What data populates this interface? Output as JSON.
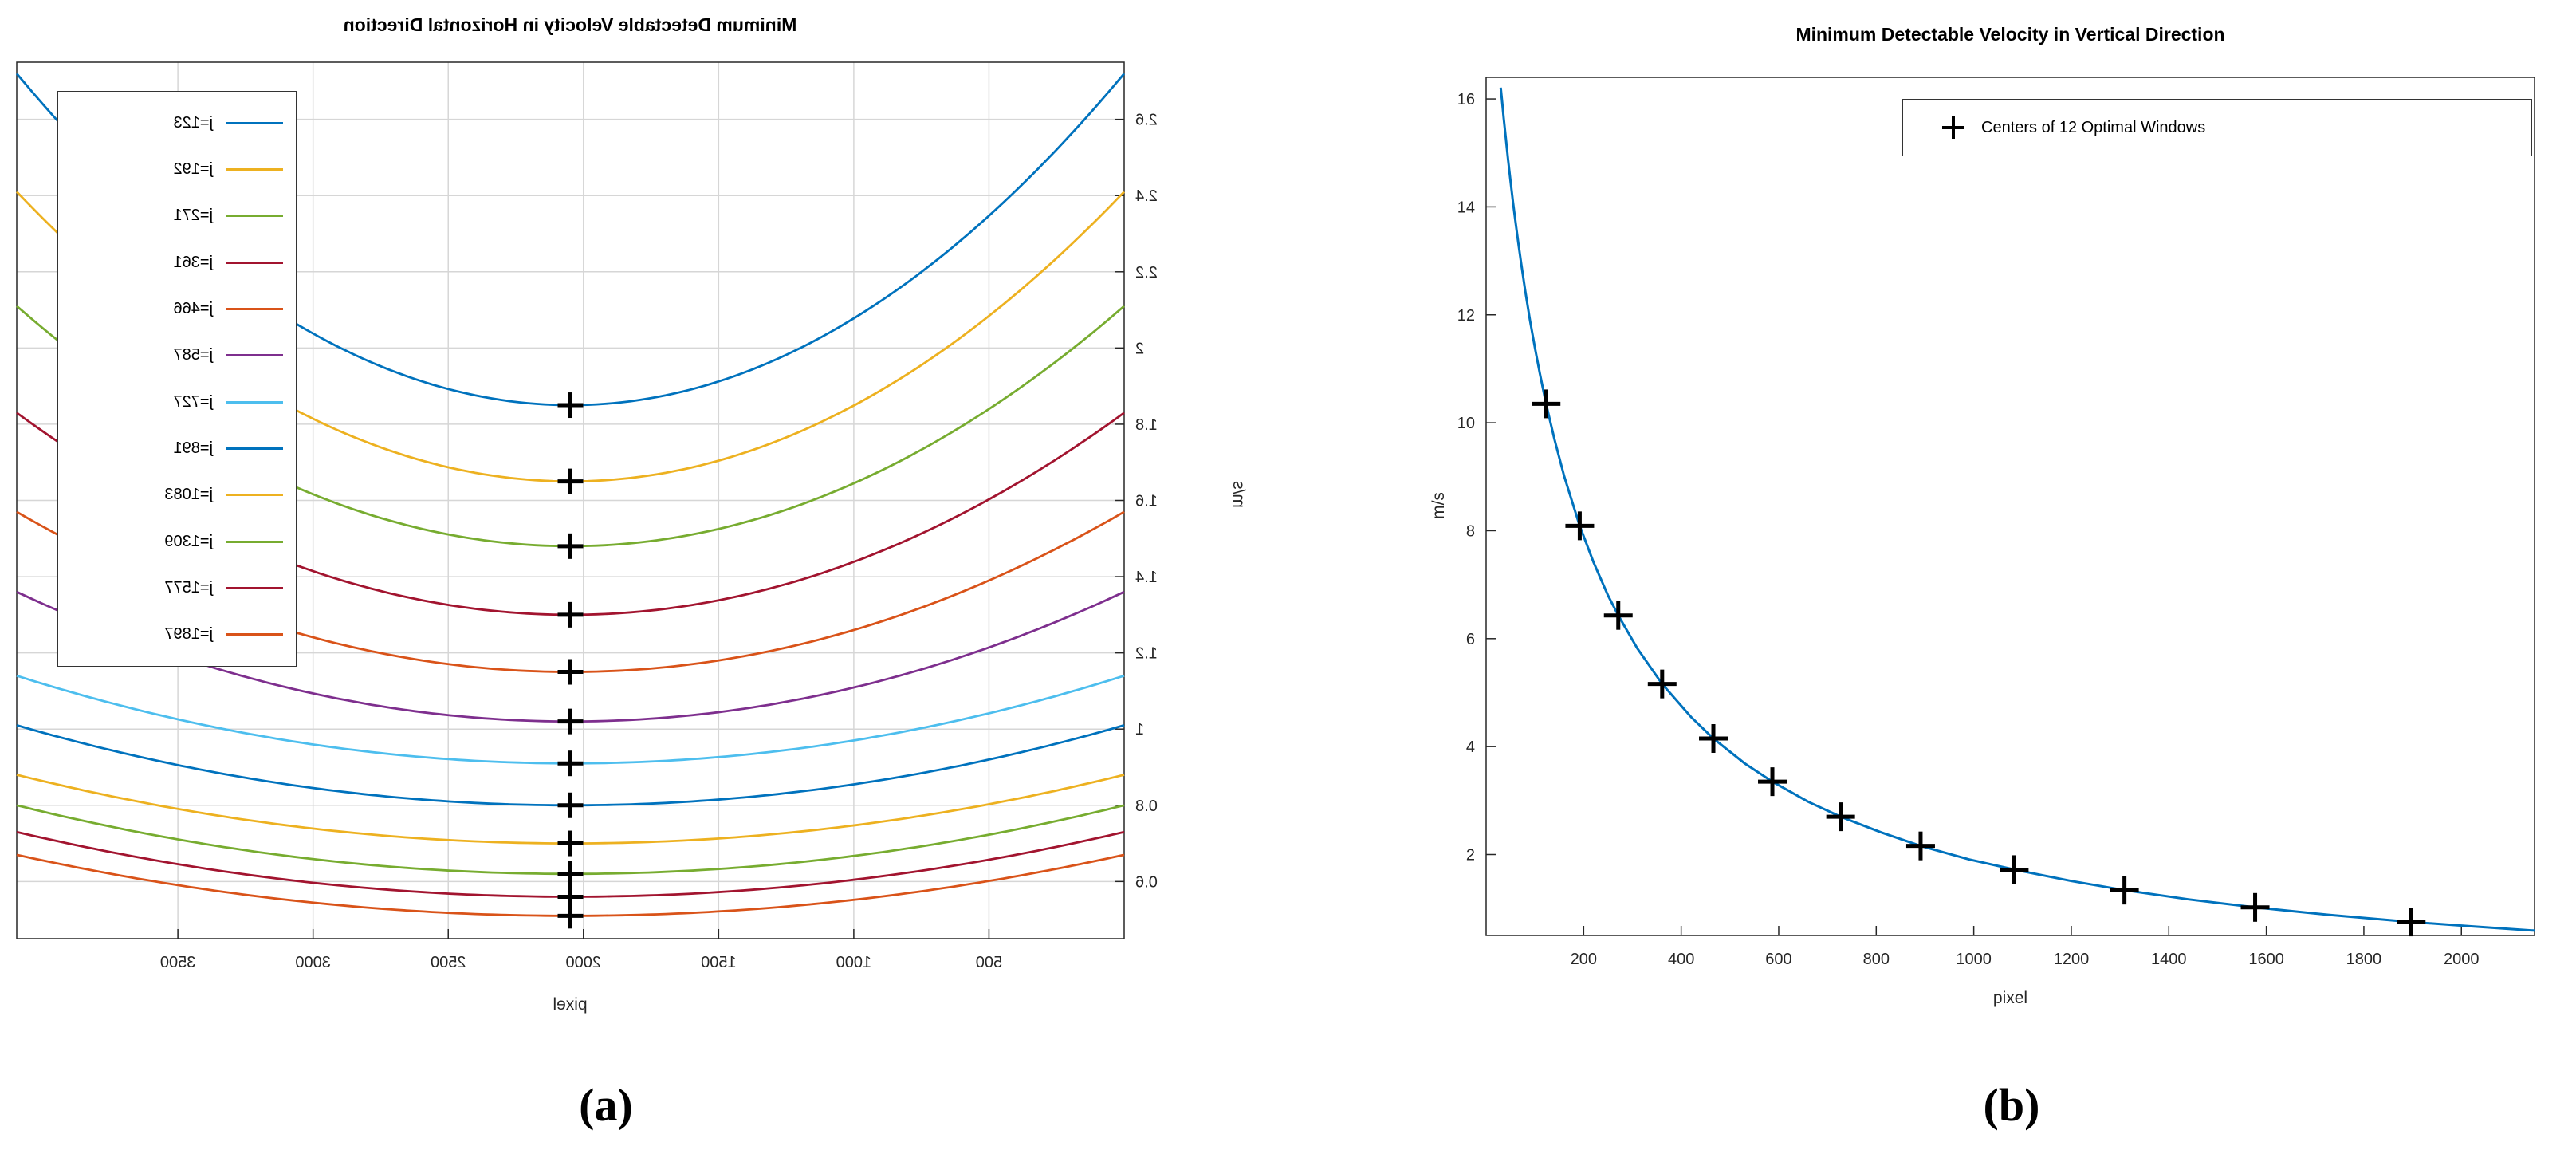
{
  "captions": {
    "a": "(a)",
    "b": "(b)"
  },
  "chart_data": [
    {
      "id": "a",
      "type": "line",
      "title": "Minimum Detectable Velocity in Horizontal Direction",
      "xlabel": "pixel",
      "ylabel": "m/s",
      "rendered_mirrored_horizontally": true,
      "grid": true,
      "legend_position": "top-right",
      "xlim": [
        0,
        4096
      ],
      "ylim": [
        0.45,
        2.75
      ],
      "xticks": [
        500,
        1000,
        1500,
        2000,
        2500,
        3000,
        3500
      ],
      "yticks": [
        0.6,
        0.8,
        1,
        1.2,
        1.4,
        1.6,
        1.8,
        2,
        2.2,
        2.4,
        2.6
      ],
      "curve_model": "v(x) = vmin + (vedge - vmin) * ((x - 2048) / 2048)^2",
      "marker": {
        "shape": "plus",
        "x": 2048,
        "color": "#000000"
      },
      "series": [
        {
          "label": "j=123",
          "color": "#0072BD",
          "vmin": 1.85,
          "vedge": 2.72
        },
        {
          "label": "j=192",
          "color": "#EDB120",
          "vmin": 1.65,
          "vedge": 2.41
        },
        {
          "label": "j=271",
          "color": "#77AC30",
          "vmin": 1.48,
          "vedge": 2.11
        },
        {
          "label": "j=361",
          "color": "#A2142F",
          "vmin": 1.3,
          "vedge": 1.83
        },
        {
          "label": "j=466",
          "color": "#D95319",
          "vmin": 1.15,
          "vedge": 1.57
        },
        {
          "label": "j=587",
          "color": "#7E2F8E",
          "vmin": 1.02,
          "vedge": 1.36
        },
        {
          "label": "j=727",
          "color": "#4DBEEE",
          "vmin": 0.91,
          "vedge": 1.14
        },
        {
          "label": "j=891",
          "color": "#0072BD",
          "vmin": 0.8,
          "vedge": 1.01
        },
        {
          "label": "j=1083",
          "color": "#EDB120",
          "vmin": 0.7,
          "vedge": 0.88
        },
        {
          "label": "j=1309",
          "color": "#77AC30",
          "vmin": 0.62,
          "vedge": 0.8
        },
        {
          "label": "j=1577",
          "color": "#A2142F",
          "vmin": 0.56,
          "vedge": 0.73
        },
        {
          "label": "j=1897",
          "color": "#D95319",
          "vmin": 0.51,
          "vedge": 0.67
        }
      ]
    },
    {
      "id": "b",
      "type": "line",
      "title": "Minimum Detectable Velocity in Vertical Direction",
      "xlabel": "pixel",
      "ylabel": "m/s",
      "grid": false,
      "xlim": [
        0,
        2150
      ],
      "ylim": [
        0.5,
        16.4
      ],
      "xticks": [
        200,
        400,
        600,
        800,
        1000,
        1200,
        1400,
        1600,
        1800,
        2000
      ],
      "yticks": [
        2,
        4,
        6,
        8,
        10,
        12,
        14,
        16
      ],
      "line_color": "#0072BD",
      "legend": {
        "label": "Centers of 12 Optimal Windows",
        "marker": "plus",
        "marker_color": "#000000"
      },
      "markers": {
        "x": [
          123,
          192,
          271,
          361,
          466,
          587,
          727,
          891,
          1083,
          1309,
          1577,
          1897
        ],
        "y": [
          10.35,
          8.09,
          6.43,
          5.16,
          4.15,
          3.35,
          2.7,
          2.16,
          1.72,
          1.34,
          1.02,
          0.75
        ]
      },
      "curve_points": {
        "x": [
          30,
          33,
          36,
          40,
          45,
          50,
          55,
          60,
          66,
          72,
          80,
          90,
          100,
          110,
          123,
          140,
          160,
          192,
          220,
          250,
          271,
          310,
          361,
          420,
          466,
          530,
          587,
          660,
          727,
          810,
          891,
          990,
          1083,
          1200,
          1309,
          1440,
          1577,
          1730,
          1897,
          2020,
          2150
        ],
        "y": [
          16.21,
          15.93,
          15.65,
          15.3,
          14.88,
          14.48,
          14.1,
          13.74,
          13.33,
          12.95,
          12.46,
          11.9,
          11.39,
          10.92,
          10.35,
          9.7,
          9.01,
          8.09,
          7.42,
          6.8,
          6.43,
          5.82,
          5.16,
          4.55,
          4.15,
          3.69,
          3.35,
          2.98,
          2.7,
          2.41,
          2.16,
          1.91,
          1.72,
          1.51,
          1.34,
          1.17,
          1.02,
          0.88,
          0.75,
          0.67,
          0.59
        ]
      }
    }
  ],
  "style": {
    "axis_color": "#262626",
    "grid_color": "#d6d6d6",
    "marker_color": "#000000"
  }
}
